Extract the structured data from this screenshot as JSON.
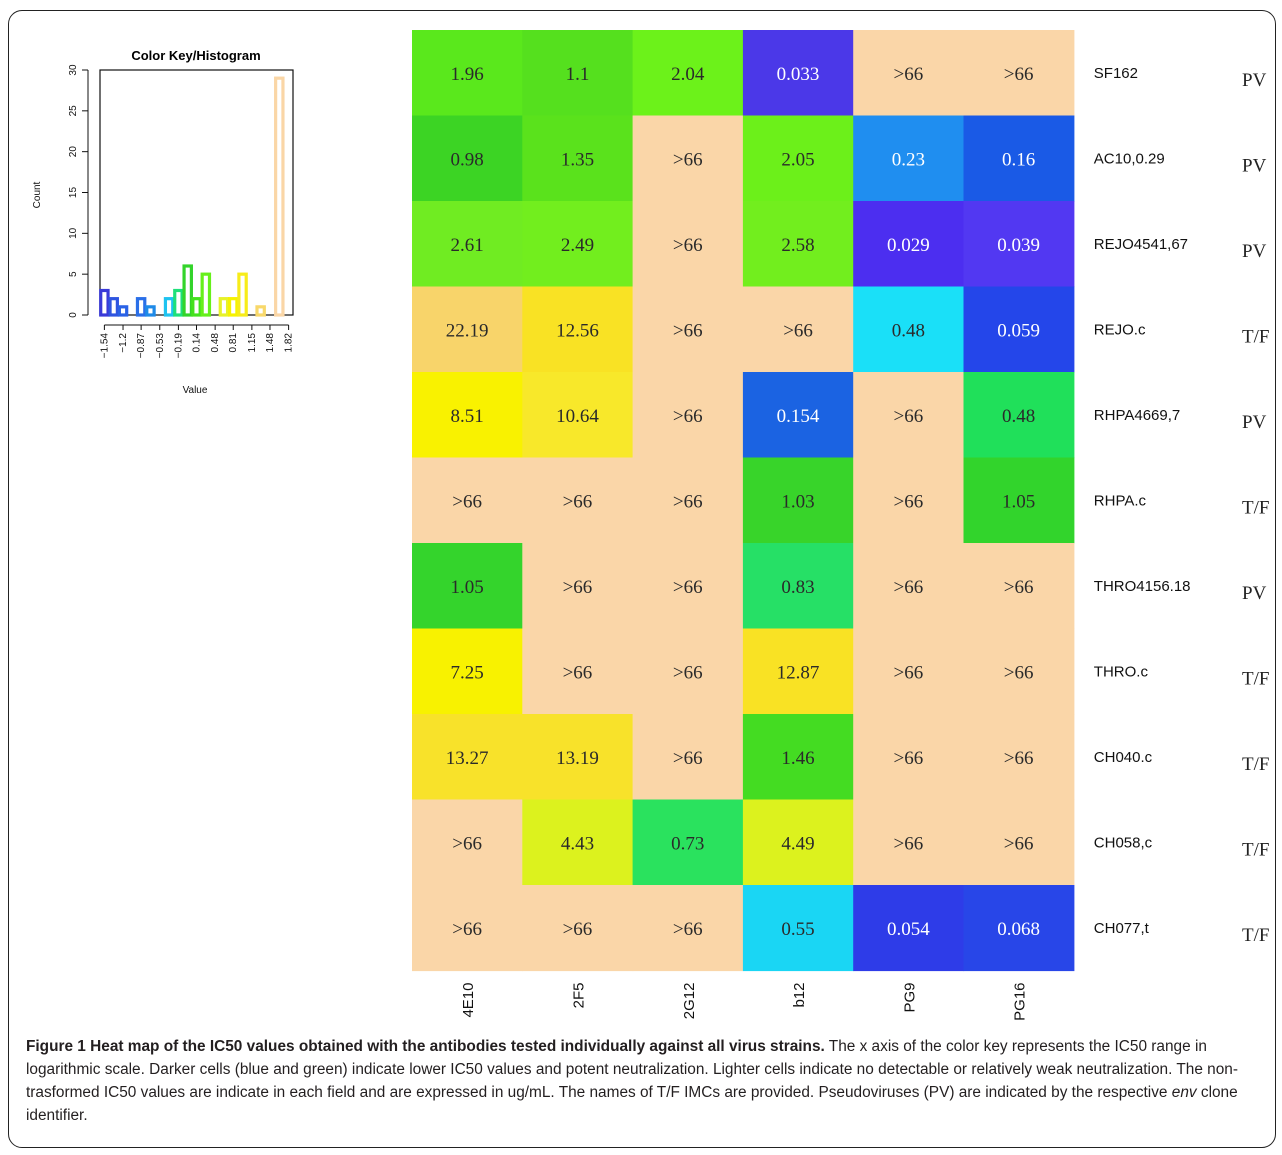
{
  "chart_data": [
    {
      "type": "bar",
      "title": "Color Key/Histogram",
      "xlabel": "Value",
      "ylabel": "Count",
      "ylim": [
        0,
        30
      ],
      "y_ticks": [
        "0",
        "5",
        "10",
        "15",
        "20",
        "25",
        "30"
      ],
      "x_ticks": [
        "-1.54",
        "-1.2",
        "-0.87",
        "-0.53",
        "-0.19",
        "0.14",
        "0.48",
        "0.81",
        "1.15",
        "1.48",
        "1.82"
      ],
      "bars": [
        {
          "x": -1.54,
          "count": 3,
          "color": "#3a3ad8"
        },
        {
          "x": -1.37,
          "count": 2,
          "color": "#2f55e0"
        },
        {
          "x": -1.2,
          "count": 1,
          "color": "#2a62e6"
        },
        {
          "x": -0.87,
          "count": 2,
          "color": "#2a6fe8"
        },
        {
          "x": -0.7,
          "count": 1,
          "color": "#1e8ae8"
        },
        {
          "x": -0.36,
          "count": 2,
          "color": "#1ec3f0"
        },
        {
          "x": -0.19,
          "count": 3,
          "color": "#1ee07a"
        },
        {
          "x": -0.02,
          "count": 6,
          "color": "#33d42a"
        },
        {
          "x": 0.14,
          "count": 2,
          "color": "#44e21e"
        },
        {
          "x": 0.31,
          "count": 5,
          "color": "#66f01a"
        },
        {
          "x": 0.64,
          "count": 2,
          "color": "#e7f22a"
        },
        {
          "x": 0.81,
          "count": 2,
          "color": "#f6f200"
        },
        {
          "x": 0.98,
          "count": 5,
          "color": "#f7ec1a"
        },
        {
          "x": 1.31,
          "count": 1,
          "color": "#f8d86a"
        },
        {
          "x": 1.65,
          "count": 29,
          "color": "#fad6a6"
        }
      ]
    },
    {
      "type": "heatmap",
      "columns": [
        "4E10",
        "2F5",
        "2G12",
        "b12",
        "PG9",
        "PG16"
      ],
      "rows": [
        {
          "name": "SF162",
          "type": "PV",
          "values": [
            "1.96",
            "1.1",
            "2.04",
            "0.033",
            ">66",
            ">66"
          ],
          "colors": [
            "#5ae81c",
            "#55e01e",
            "#6cf21a",
            "#4b38e8",
            "#fad6a8",
            "#fad6a8"
          ]
        },
        {
          "name": "AC10,0.29",
          "type": "PV",
          "values": [
            "0.98",
            "1.35",
            ">66",
            "2.05",
            "0.23",
            "0.16"
          ],
          "colors": [
            "#3cd424",
            "#5ae21c",
            "#fad6a8",
            "#6cf01a",
            "#1f8ef0",
            "#1a5ae6"
          ]
        },
        {
          "name": "REJO4541,67",
          "type": "PV",
          "values": [
            "2.61",
            "2.49",
            ">66",
            "2.58",
            "0.029",
            "0.039"
          ],
          "colors": [
            "#70ec22",
            "#72ee1e",
            "#fad6a8",
            "#72ee1e",
            "#4c2ef0",
            "#5238f2"
          ]
        },
        {
          "name": "REJO.c",
          "type": "T/F",
          "values": [
            "22.19",
            "12.56",
            ">66",
            ">66",
            "0.48",
            "0.059"
          ],
          "colors": [
            "#f8d46a",
            "#f9e224",
            "#fad6a8",
            "#fad6a8",
            "#1ae0f8",
            "#2446ea"
          ]
        },
        {
          "name": "RHPA4669,7",
          "type": "PV",
          "values": [
            "8.51",
            "10.64",
            ">66",
            "0.154",
            ">66",
            "0.48"
          ],
          "colors": [
            "#f9f200",
            "#f8e82a",
            "#fad6a8",
            "#1b63e2",
            "#fad6a8",
            "#20e05a"
          ]
        },
        {
          "name": "RHPA.c",
          "type": "T/F",
          "values": [
            ">66",
            ">66",
            ">66",
            "1.03",
            ">66",
            "1.05"
          ],
          "colors": [
            "#fad6a8",
            "#fad6a8",
            "#fad6a8",
            "#38d42a",
            "#fad6a8",
            "#32d42c"
          ]
        },
        {
          "name": "THRO4156.18",
          "type": "PV",
          "values": [
            "1.05",
            ">66",
            ">66",
            "0.83",
            ">66",
            ">66"
          ],
          "colors": [
            "#34d42c",
            "#fad6a8",
            "#fad6a8",
            "#26e066",
            "#fad6a8",
            "#fad6a8"
          ]
        },
        {
          "name": "THRO.c",
          "type": "T/F",
          "values": [
            "7.25",
            ">66",
            ">66",
            "12.87",
            ">66",
            ">66"
          ],
          "colors": [
            "#f8f200",
            "#fad6a8",
            "#fad6a8",
            "#f9e224",
            "#fad6a8",
            "#fad6a8"
          ]
        },
        {
          "name": "CH040.c",
          "type": "T/F",
          "values": [
            "13.27",
            "13.19",
            ">66",
            "1.46",
            ">66",
            ">66"
          ],
          "colors": [
            "#f8e22a",
            "#f8e22a",
            "#fad6a8",
            "#44dc22",
            "#fad6a8",
            "#fad6a8"
          ]
        },
        {
          "name": "CH058,c",
          "type": "T/F",
          "values": [
            ">66",
            "4.43",
            "0.73",
            "4.49",
            ">66",
            ">66"
          ],
          "colors": [
            "#fad6a8",
            "#dcf21e",
            "#2ae25e",
            "#dcf21e",
            "#fad6a8",
            "#fad6a8"
          ]
        },
        {
          "name": "CH077,t",
          "type": "T/F",
          "values": [
            ">66",
            ">66",
            ">66",
            "0.55",
            "0.054",
            "0.068"
          ],
          "colors": [
            "#fad6a8",
            "#fad6a8",
            "#fad6a8",
            "#1ad6f4",
            "#2e3ce8",
            "#2846e8"
          ]
        }
      ]
    }
  ],
  "caption": {
    "bold": "Figure 1 Heat map of the IC50 values obtained with the antibodies tested individually against all virus strains.",
    "text1": " The x axis of the color key represents the IC50 range in logarithmic scale. Darker cells (blue and green) indicate lower IC50 values and potent neutralization. Lighter cells indicate no detectable or relatively weak neutralization. The non-trasformed IC50 values are indicate in each field and are expressed in ug/mL. The names of T/F IMCs are provided. Pseudoviruses (PV) are indicated by the respective ",
    "italic": "env",
    "text2": " clone identifier."
  },
  "colors": {
    "no_neutralization": "#fad6a8",
    "frame": "#222222"
  }
}
